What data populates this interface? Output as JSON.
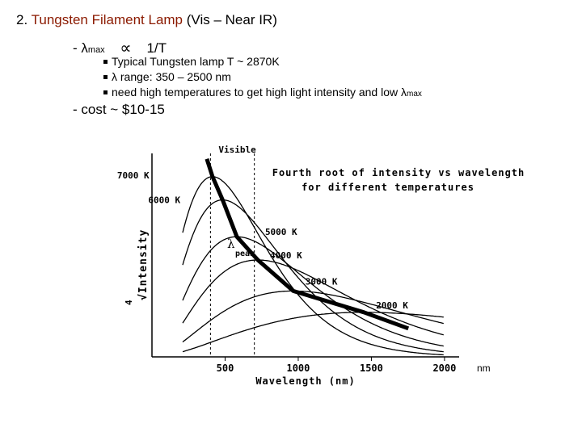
{
  "slide": {
    "title_number": "2.",
    "title_text": "Tungsten Filament Lamp",
    "title_paren": "(Vis – Near IR)",
    "prop_line": {
      "dash": "-",
      "lambda": "λ",
      "sub": "max",
      "relation": "1/T"
    },
    "bullets": [
      {
        "text": "Typical Tungsten lamp T ~ 2870K"
      },
      {
        "text": "λ range: 350 – 2500 nm"
      },
      {
        "text": "need high temperatures to get high light intensity and  low λ",
        "sub": "max"
      }
    ],
    "cost": "- cost ~ $10-15"
  },
  "chart_data": {
    "type": "line",
    "title": "Fourth root of intensity vs wavelength",
    "subtitle": "for different temperatures",
    "xlabel": "Wavelength (nm)",
    "ylabel": "4√Intensity",
    "ylabel_root": "4",
    "ylabel_text": "√Intensity",
    "x_unit": "nm",
    "xlim": [
      0,
      2100
    ],
    "ylim": [
      0,
      1
    ],
    "x_ticks": [
      500,
      1000,
      1500,
      2000
    ],
    "visible_label": "Visible",
    "visible_range": [
      400,
      700
    ],
    "peak_label": "λ",
    "peak_sub": "peak",
    "series": [
      {
        "name": "7000 K",
        "peak_x": 414,
        "peak_y": 0.93
      },
      {
        "name": "6000 K",
        "peak_x": 483,
        "peak_y": 0.81
      },
      {
        "name": "5000 K",
        "peak_x": 580,
        "peak_y": 0.62
      },
      {
        "name": "4000 K",
        "peak_x": 724,
        "peak_y": 0.5
      },
      {
        "name": "3000 K",
        "peak_x": 966,
        "peak_y": 0.34
      },
      {
        "name": "2000 K",
        "peak_x": 1449,
        "peak_y": 0.23
      }
    ]
  }
}
